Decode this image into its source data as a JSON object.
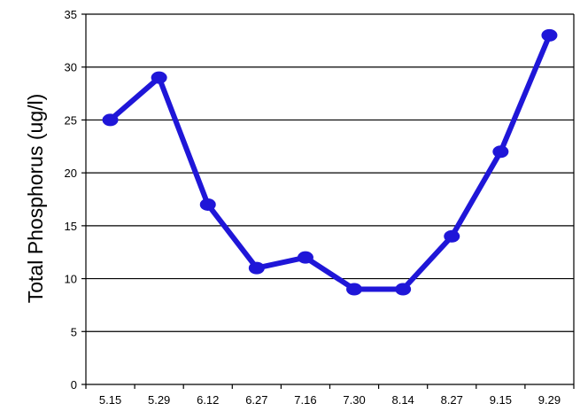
{
  "chart_data": {
    "type": "line",
    "title": "",
    "xlabel": "",
    "ylabel": "Total Phosphorus (ug/l)",
    "categories": [
      "5.15",
      "5.29",
      "6.12",
      "6.27",
      "7.16",
      "7.30",
      "8.14",
      "8.27",
      "9.15",
      "9.29"
    ],
    "series": [
      {
        "values": [
          25,
          29,
          17,
          11,
          12,
          9,
          9,
          14,
          22,
          33
        ]
      }
    ],
    "ylim": [
      0,
      35
    ],
    "yticks": [
      0,
      5,
      10,
      15,
      20,
      25,
      30,
      35
    ],
    "grid": "horizontal",
    "legend": "none",
    "colors": {
      "line": "#1f16d8",
      "grid": "#000000",
      "axis": "#000000"
    }
  }
}
